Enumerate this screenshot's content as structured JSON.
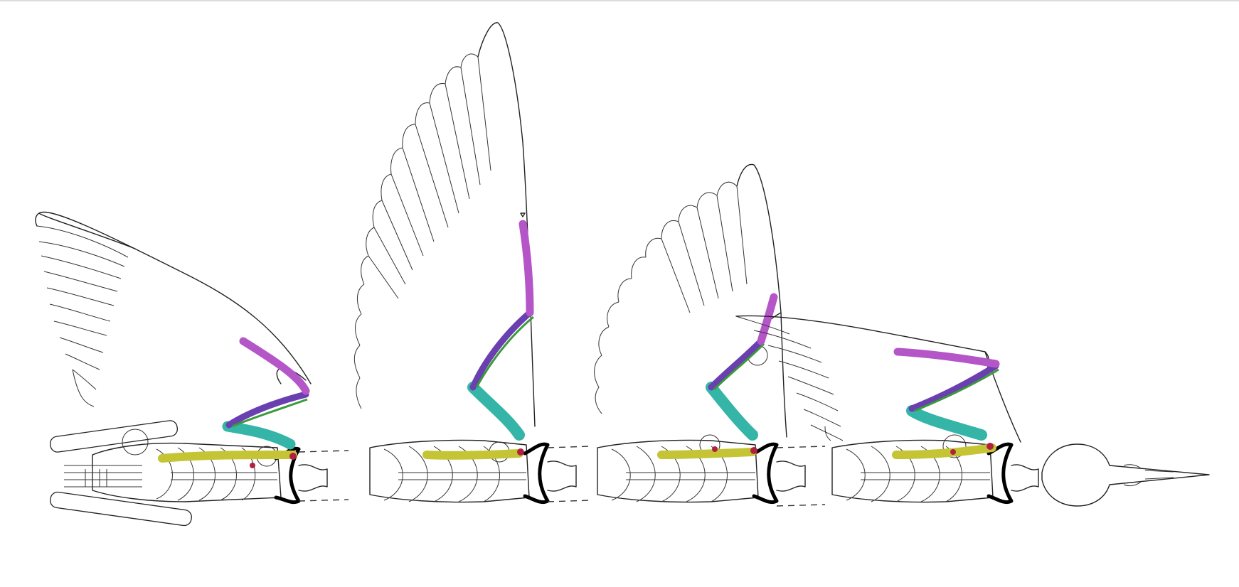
{
  "figure": {
    "panels": [
      {
        "id": "stroke-1",
        "wing_pose": "upstroke-folded"
      },
      {
        "id": "stroke-2",
        "wing_pose": "fully-raised"
      },
      {
        "id": "stroke-3",
        "wing_pose": "mid-downstroke"
      },
      {
        "id": "stroke-4",
        "wing_pose": "extended-lowered"
      }
    ],
    "bone_colors": {
      "humerus": "#35b5a8",
      "radius_ulna": "#6a3fb0",
      "radius_highlight": "#3a9a3a",
      "manus": "#b455c8",
      "coracoid": "#c4c435",
      "scapula_joint": "#b02040"
    }
  }
}
